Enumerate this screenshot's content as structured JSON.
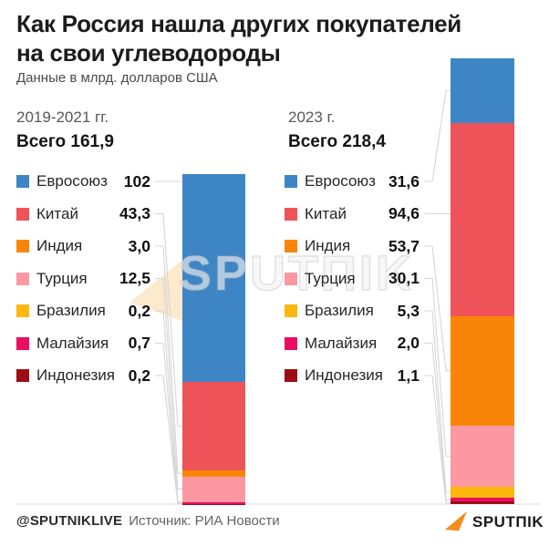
{
  "title": {
    "line1": "Как Россия нашла других покупателей",
    "line2": "на свои углеводороды"
  },
  "subtitle": "Данные в млрд. долларов США",
  "watermark": {
    "text": "SPUTΠIK"
  },
  "footer": {
    "handle": "@SPUTNIKLIVE",
    "source": "Источник: РИА Новости",
    "logo_text": "SPUTΠIK",
    "logo_color": "#F68B1E"
  },
  "chart_data": {
    "type": "bar",
    "stacked": true,
    "title": "Как Россия нашла других покупателей на свои углеводороды",
    "subtitle": "Данные в млрд. долларов США",
    "unit": "млрд. долларов США",
    "legend_position": "left-of-bar",
    "grid": false,
    "categories": [
      "Евросоюз",
      "Китай",
      "Индия",
      "Турция",
      "Бразилия",
      "Малайзия",
      "Индонезия"
    ],
    "category_colors": [
      "#3E85C6",
      "#ED5358",
      "#F98508",
      "#FB98A2",
      "#FCB80D",
      "#EA0E63",
      "#9B0E15"
    ],
    "series": [
      {
        "name": "2019-2021 гг.",
        "total": 161.9,
        "total_label": "Всего 161,9",
        "values": [
          102,
          43.3,
          3.0,
          12.5,
          0.2,
          0.7,
          0.2
        ],
        "value_labels": [
          "102",
          "43,3",
          "3,0",
          "12,5",
          "0,2",
          "0,7",
          "0,2"
        ]
      },
      {
        "name": "2023 г.",
        "total": 218.4,
        "total_label": "Всего 218,4",
        "values": [
          31.6,
          94.6,
          53.7,
          30.1,
          5.3,
          2.0,
          1.1
        ],
        "value_labels": [
          "31,6",
          "94,6",
          "53,7",
          "30,1",
          "5,3",
          "2,0",
          "1,1"
        ]
      }
    ],
    "connector_line_color": "#D6D6D6",
    "baseline_color": "#E3E3E3"
  }
}
